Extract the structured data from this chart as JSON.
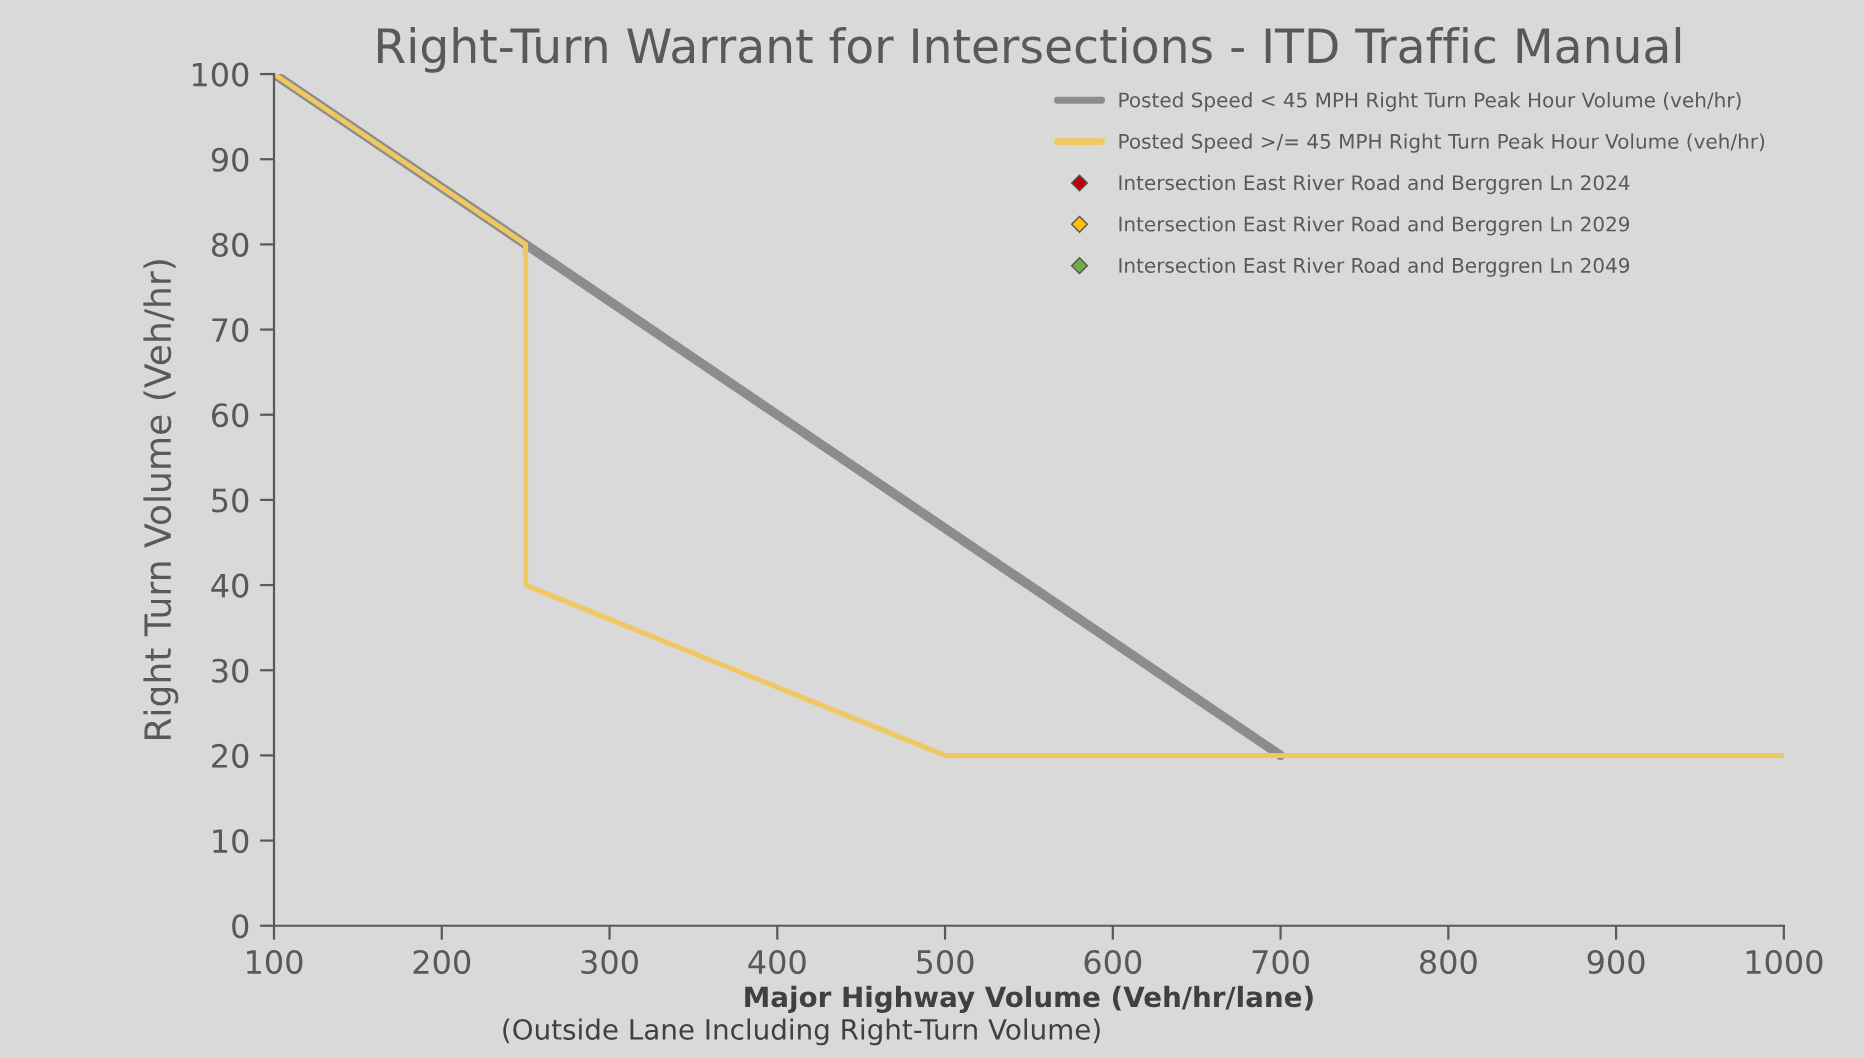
{
  "chart_data": {
    "type": "line",
    "title": "Right-Turn Warrant for Intersections - ITD Traffic Manual",
    "xlabel": "Major Highway Volume (Veh/hr/lane)",
    "ylabel": "Right Turn Volume (Veh/hr)",
    "annotations": [
      "(Outside Lane Including Right-Turn Volume)"
    ],
    "series": [
      {
        "name": "Posted Speed < 45 MPH Right Turn Peak Hour Volume (veh/hr)",
        "color": "#8c8c8c",
        "x": [
          100,
          250,
          700
        ],
        "values": [
          100,
          80,
          20
        ]
      },
      {
        "name": "Posted Speed >/= 45 MPH Right Turn Peak Hour Volume (veh/hr)",
        "color": "#f0c862",
        "x": [
          100,
          250,
          250,
          500,
          1000
        ],
        "values": [
          100,
          80,
          40,
          20,
          20
        ]
      },
      {
        "name": "Intersection East River Road and Berggren Ln 2024",
        "type": "scatter",
        "marker": "diamond",
        "color": "#c00000"
      },
      {
        "name": "Intersection East River Road and Berggren Ln 2029",
        "type": "scatter",
        "marker": "diamond",
        "color": "#ffc000"
      },
      {
        "name": "Intersection East River Road and Berggren Ln 2049",
        "type": "scatter",
        "marker": "diamond",
        "color": "#70ad47"
      }
    ],
    "xlim": [
      100,
      1000
    ],
    "xticks": [
      100,
      200,
      300,
      400,
      500,
      600,
      700,
      800,
      900,
      1000
    ],
    "ylim": [
      0,
      100
    ],
    "yticks": [
      0,
      10,
      20,
      30,
      40,
      50,
      60,
      70,
      80,
      90,
      100
    ],
    "grid": false,
    "legend": "top right"
  }
}
